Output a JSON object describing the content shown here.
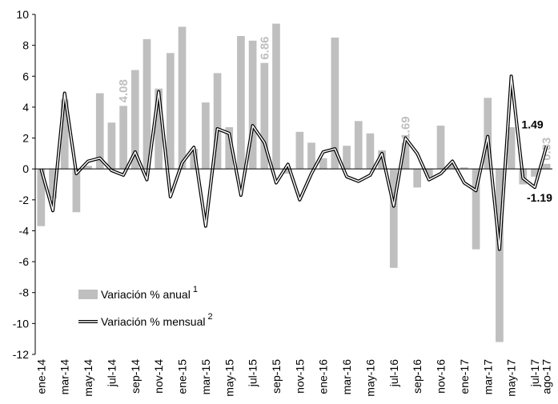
{
  "chart_data": {
    "type": "bar-line",
    "categories": [
      "ene-14",
      null,
      "mar-14",
      null,
      "may-14",
      null,
      "jul-14",
      null,
      "sep-14",
      null,
      "nov-14",
      null,
      "ene-15",
      null,
      "mar-15",
      null,
      "may-15",
      null,
      "jul-15",
      null,
      "sep-15",
      null,
      "nov-15",
      null,
      "ene-16",
      null,
      "mar-16",
      null,
      "may-16",
      null,
      "jul-16",
      null,
      "sep-16",
      null,
      "nov-16",
      null,
      "ene-17",
      null,
      "mar-17",
      null,
      "may-17",
      null,
      "jul-17",
      "ago-17"
    ],
    "series": [
      {
        "name": "Variación % anual",
        "note": "1",
        "kind": "bar",
        "color": "#bfbfbf",
        "values": [
          -3.7,
          -1.9,
          4.5,
          -2.8,
          0.2,
          4.9,
          3.0,
          4.08,
          6.4,
          8.4,
          5.2,
          7.5,
          9.2,
          1.3,
          4.3,
          6.2,
          2.7,
          8.6,
          8.3,
          6.86,
          9.4,
          -0.3,
          2.4,
          1.7,
          0.7,
          8.5,
          1.5,
          3.1,
          2.3,
          1.2,
          -6.4,
          1.69,
          -1.2,
          -0.5,
          2.8,
          0.3,
          0.1,
          -5.2,
          4.6,
          -11.2,
          2.7,
          -1.0,
          -0.5,
          0.33
        ],
        "value_labels": [
          null,
          null,
          null,
          null,
          null,
          null,
          null,
          "4.08",
          null,
          null,
          null,
          null,
          null,
          null,
          null,
          null,
          null,
          null,
          null,
          "6.86",
          null,
          null,
          null,
          null,
          null,
          null,
          null,
          null,
          null,
          null,
          null,
          "1.69",
          null,
          null,
          null,
          null,
          null,
          null,
          null,
          null,
          null,
          null,
          null,
          "0.33"
        ]
      },
      {
        "name": "Variación % mensual",
        "note": "2",
        "kind": "line",
        "color": "#000000",
        "values": [
          0,
          -2.7,
          4.9,
          -0.3,
          0.5,
          0.7,
          -0.1,
          -0.4,
          1.1,
          -0.7,
          5.0,
          -1.8,
          0.4,
          1.4,
          -3.7,
          2.6,
          2.3,
          -1.7,
          2.8,
          1.7,
          -0.9,
          0.3,
          -2.0,
          -0.3,
          1.1,
          1.3,
          -0.5,
          -0.8,
          -0.4,
          1.0,
          -2.4,
          2.0,
          1.0,
          -0.7,
          -0.3,
          0.5,
          -0.9,
          -1.4,
          2.1,
          -5.2,
          6.0,
          -0.6,
          -1.19,
          1.49
        ],
        "value_labels": [
          null,
          null,
          null,
          null,
          null,
          null,
          null,
          null,
          null,
          null,
          null,
          null,
          null,
          null,
          null,
          null,
          null,
          null,
          null,
          null,
          null,
          null,
          null,
          null,
          null,
          null,
          null,
          null,
          null,
          null,
          null,
          null,
          null,
          null,
          null,
          null,
          null,
          null,
          null,
          null,
          null,
          null,
          "-1.19",
          "1.49"
        ]
      }
    ],
    "ylim": [
      -12,
      10
    ],
    "yticks": [
      -12,
      -10,
      -8,
      -6,
      -4,
      -2,
      0,
      2,
      4,
      6,
      8,
      10
    ],
    "grid": false,
    "legend": "lower-left"
  }
}
